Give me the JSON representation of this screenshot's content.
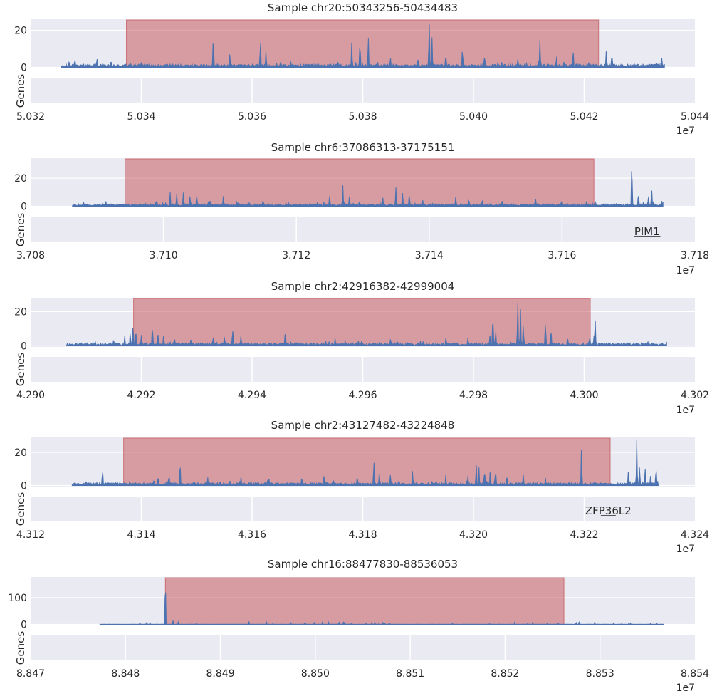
{
  "colors": {
    "panel_bg": "#eaeaf2",
    "grid": "#ffffff",
    "signal": "#4c72b0",
    "region_fill": "#c44e52",
    "gene_line": "#555555",
    "text": "#262626"
  },
  "chart_data": [
    {
      "type": "area",
      "title": "Sample chr20:50343256-50434483",
      "x_exponent": "1e7",
      "xlim": [
        5.032,
        5.044
      ],
      "xticks": [
        "5.032",
        "5.034",
        "5.036",
        "5.038",
        "5.040",
        "5.042",
        "5.044"
      ],
      "ylim": [
        0,
        25
      ],
      "yticks": [
        "0",
        "20"
      ],
      "gene_track_label": "Genes",
      "signal_range": [
        5.03256,
        5.04345
      ],
      "highlight": [
        5.03373,
        5.04226
      ],
      "baseline": 1.0,
      "peaks": [
        [
          5.0327,
          2.5
        ],
        [
          5.0328,
          3
        ],
        [
          5.0332,
          4
        ],
        [
          5.03345,
          2.5
        ],
        [
          5.0353,
          18
        ],
        [
          5.0356,
          7
        ],
        [
          5.03615,
          14
        ],
        [
          5.03625,
          8
        ],
        [
          5.0367,
          3
        ],
        [
          5.03755,
          3
        ],
        [
          5.0378,
          12
        ],
        [
          5.03795,
          13
        ],
        [
          5.0381,
          16
        ],
        [
          5.0385,
          4
        ],
        [
          5.039,
          4
        ],
        [
          5.0392,
          24
        ],
        [
          5.03925,
          15
        ],
        [
          5.0395,
          6
        ],
        [
          5.0398,
          9
        ],
        [
          5.0402,
          5
        ],
        [
          5.0408,
          3
        ],
        [
          5.0412,
          14
        ],
        [
          5.0415,
          5
        ],
        [
          5.0418,
          9
        ],
        [
          5.0424,
          8
        ],
        [
          5.0425,
          5
        ],
        [
          5.0433,
          2
        ],
        [
          5.0434,
          4.5
        ]
      ],
      "genes": []
    },
    {
      "type": "area",
      "title": "Sample chr6:37086313-37175151",
      "x_exponent": "1e7",
      "xlim": [
        3.708,
        3.718
      ],
      "xticks": [
        "3.708",
        "3.710",
        "3.712",
        "3.714",
        "3.716",
        "3.718"
      ],
      "ylim": [
        0,
        33
      ],
      "yticks": [
        "0",
        "20"
      ],
      "gene_track_label": "Genes",
      "signal_range": [
        3.70863,
        3.71752
      ],
      "highlight": [
        3.70942,
        3.71648
      ],
      "baseline": 1.0,
      "peaks": [
        [
          3.7099,
          3
        ],
        [
          3.7101,
          9
        ],
        [
          3.7102,
          8
        ],
        [
          3.7103,
          9
        ],
        [
          3.7104,
          6
        ],
        [
          3.7105,
          7
        ],
        [
          3.7107,
          4
        ],
        [
          3.7109,
          6
        ],
        [
          3.7115,
          3
        ],
        [
          3.7125,
          6
        ],
        [
          3.7127,
          14
        ],
        [
          3.7128,
          6
        ],
        [
          3.7133,
          5
        ],
        [
          3.7135,
          12
        ],
        [
          3.7136,
          9
        ],
        [
          3.7137,
          7
        ],
        [
          3.7139,
          5
        ],
        [
          3.7144,
          6
        ],
        [
          3.7146,
          4
        ],
        [
          3.7148,
          3
        ],
        [
          3.7151,
          3
        ],
        [
          3.7156,
          5
        ],
        [
          3.716,
          3
        ],
        [
          3.7165,
          2
        ],
        [
          3.71705,
          32
        ],
        [
          3.71715,
          8
        ],
        [
          3.7173,
          6
        ],
        [
          3.71735,
          11
        ],
        [
          3.7175,
          3
        ]
      ],
      "genes": [
        {
          "name": "PIM1",
          "start": 3.71708,
          "end": 3.71748
        }
      ]
    },
    {
      "type": "area",
      "title": "Sample chr2:42916382-42999004",
      "x_exponent": "1e7",
      "xlim": [
        4.29,
        4.302
      ],
      "xticks": [
        "4.290",
        "4.292",
        "4.294",
        "4.296",
        "4.298",
        "4.300",
        "4.302"
      ],
      "ylim": [
        0,
        27
      ],
      "yticks": [
        "0",
        "20"
      ],
      "gene_track_label": "Genes",
      "signal_range": [
        4.29064,
        4.30149
      ],
      "highlight": [
        4.29186,
        4.30011
      ],
      "baseline": 1.0,
      "peaks": [
        [
          4.2915,
          3
        ],
        [
          4.2917,
          5
        ],
        [
          4.2918,
          7
        ],
        [
          4.29185,
          12
        ],
        [
          4.2919,
          9
        ],
        [
          4.292,
          5
        ],
        [
          4.2922,
          10
        ],
        [
          4.2923,
          7
        ],
        [
          4.2924,
          5
        ],
        [
          4.2926,
          4
        ],
        [
          4.2929,
          3
        ],
        [
          4.2933,
          4
        ],
        [
          4.2935,
          5
        ],
        [
          4.29365,
          10
        ],
        [
          4.2938,
          4
        ],
        [
          4.2946,
          9
        ],
        [
          4.2955,
          3
        ],
        [
          4.2965,
          3
        ],
        [
          4.2975,
          3
        ],
        [
          4.2979,
          4
        ],
        [
          4.2983,
          6
        ],
        [
          4.29835,
          18
        ],
        [
          4.2984,
          9
        ],
        [
          4.2988,
          25
        ],
        [
          4.29885,
          20
        ],
        [
          4.2989,
          12
        ],
        [
          4.2993,
          14
        ],
        [
          4.2994,
          9
        ],
        [
          4.2997,
          4
        ],
        [
          4.3001,
          4
        ],
        [
          4.30018,
          6
        ],
        [
          4.3002,
          14
        ],
        [
          4.3015,
          3
        ]
      ],
      "genes": []
    },
    {
      "type": "area",
      "title": "Sample chr2:43127482-43224848",
      "x_exponent": "1e7",
      "xlim": [
        4.312,
        4.324
      ],
      "xticks": [
        "4.312",
        "4.314",
        "4.316",
        "4.318",
        "4.320",
        "4.322",
        "4.324"
      ],
      "ylim": [
        0,
        28
      ],
      "yticks": [
        "0",
        "20"
      ],
      "gene_track_label": "Genes",
      "signal_range": [
        4.31275,
        4.32335
      ],
      "highlight": [
        4.31368,
        4.32247
      ],
      "baseline": 1.0,
      "peaks": [
        [
          4.313,
          2
        ],
        [
          4.3133,
          9
        ],
        [
          4.3143,
          4
        ],
        [
          4.3145,
          6
        ],
        [
          4.3147,
          14
        ],
        [
          4.3152,
          4
        ],
        [
          4.3158,
          5
        ],
        [
          4.3163,
          4
        ],
        [
          4.3169,
          4
        ],
        [
          4.3173,
          6
        ],
        [
          4.3179,
          4
        ],
        [
          4.3182,
          14
        ],
        [
          4.3183,
          7
        ],
        [
          4.3185,
          5
        ],
        [
          4.3189,
          7
        ],
        [
          4.3195,
          5
        ],
        [
          4.3199,
          5
        ],
        [
          4.32005,
          12
        ],
        [
          4.3201,
          10
        ],
        [
          4.3202,
          8
        ],
        [
          4.3203,
          7
        ],
        [
          4.3204,
          9
        ],
        [
          4.3206,
          5
        ],
        [
          4.3209,
          5
        ],
        [
          4.3213,
          4
        ],
        [
          4.32195,
          22
        ],
        [
          4.3228,
          8
        ],
        [
          4.32295,
          27
        ],
        [
          4.323,
          12
        ],
        [
          4.3231,
          10
        ],
        [
          4.3232,
          6
        ],
        [
          4.3233,
          9
        ]
      ],
      "genes": [
        {
          "name": "ZFP36L2",
          "start": 4.3223,
          "end": 4.32257
        }
      ]
    },
    {
      "type": "area",
      "title": "Sample chr16:88477830-88536053",
      "x_exponent": "1e7",
      "xlim": [
        8.847,
        8.854
      ],
      "xticks": [
        "8.847",
        "8.848",
        "8.849",
        "8.850",
        "8.851",
        "8.852",
        "8.853",
        "8.854"
      ],
      "ylim": [
        0,
        170
      ],
      "yticks": [
        "0",
        "100"
      ],
      "gene_track_label": "Genes",
      "signal_range": [
        8.84773,
        8.85367
      ],
      "highlight": [
        8.84842,
        8.85262
      ],
      "baseline": 0.5,
      "peaks": [
        [
          8.84842,
          165
        ],
        [
          8.8485,
          15
        ],
        [
          8.85025,
          7
        ],
        [
          8.8503,
          10
        ],
        [
          8.85073,
          6
        ],
        [
          8.85078,
          5
        ],
        [
          8.85278,
          8
        ]
      ],
      "genes": []
    }
  ]
}
